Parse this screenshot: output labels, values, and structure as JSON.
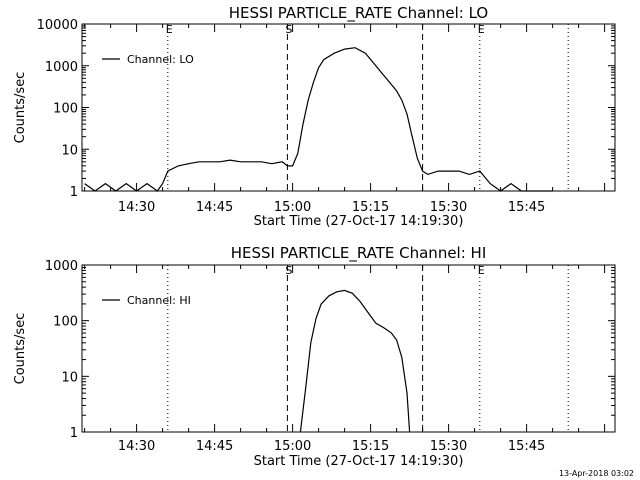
{
  "footer_timestamp": "13-Apr-2018 03:02",
  "chart_data": [
    {
      "type": "line",
      "title": "HESSI PARTICLE_RATE Channel: LO",
      "xlabel": "Start Time (27-Oct-17 14:19:30)",
      "ylabel": "Counts/sec",
      "yscale": "log",
      "xlim": [
        "14:19:30",
        "16:02:00"
      ],
      "ylim": [
        1,
        10000
      ],
      "xticks": [
        "14:30",
        "14:45",
        "15:00",
        "15:15",
        "15:30",
        "15:45"
      ],
      "yticks": [
        "1",
        "10",
        "100",
        "1000",
        "10000"
      ],
      "legend": {
        "position": "top-left",
        "entries": [
          "Channel: LO"
        ]
      },
      "markers": [
        {
          "time": "14:36:00",
          "style": "dotted",
          "label": "E"
        },
        {
          "time": "14:59:00",
          "style": "dashed",
          "label": "S"
        },
        {
          "time": "15:25:00",
          "style": "dashed",
          "label": ""
        },
        {
          "time": "15:36:00",
          "style": "dotted",
          "label": "E"
        },
        {
          "time": "15:53:00",
          "style": "dotted",
          "label": ""
        }
      ],
      "series": [
        {
          "name": "Channel: LO",
          "x": [
            "14:20:00",
            "14:22:00",
            "14:24:00",
            "14:26:00",
            "14:28:00",
            "14:30:00",
            "14:32:00",
            "14:34:00",
            "14:35:00",
            "14:36:00",
            "14:38:00",
            "14:40:00",
            "14:42:00",
            "14:44:00",
            "14:46:00",
            "14:48:00",
            "14:50:00",
            "14:52:00",
            "14:54:00",
            "14:56:00",
            "14:58:00",
            "14:59:00",
            "15:00:00",
            "15:01:00",
            "15:02:00",
            "15:03:00",
            "15:04:00",
            "15:05:00",
            "15:06:00",
            "15:08:00",
            "15:10:00",
            "15:12:00",
            "15:14:00",
            "15:16:00",
            "15:18:00",
            "15:20:00",
            "15:21:00",
            "15:22:00",
            "15:23:00",
            "15:24:00",
            "15:25:00",
            "15:26:00",
            "15:28:00",
            "15:30:00",
            "15:32:00",
            "15:34:00",
            "15:36:00",
            "15:38:00",
            "15:40:00",
            "15:42:00",
            "15:44:00",
            "15:46:00",
            "15:48:00",
            "15:50:00"
          ],
          "y": [
            1.5,
            1,
            1.5,
            1,
            1.5,
            1,
            1.5,
            1,
            1.5,
            3,
            4,
            4.5,
            5,
            5,
            5,
            5.5,
            5,
            5,
            5,
            4.5,
            5,
            4,
            4,
            8,
            40,
            150,
            400,
            900,
            1400,
            2000,
            2500,
            2700,
            2000,
            1000,
            500,
            250,
            150,
            70,
            20,
            6,
            3,
            2.5,
            3,
            3,
            3,
            2.5,
            3,
            1.5,
            1,
            1.5,
            1,
            1,
            1,
            1
          ]
        }
      ]
    },
    {
      "type": "line",
      "title": "HESSI PARTICLE_RATE Channel: HI",
      "xlabel": "Start Time (27-Oct-17 14:19:30)",
      "ylabel": "Counts/sec",
      "yscale": "log",
      "xlim": [
        "14:19:30",
        "16:02:00"
      ],
      "ylim": [
        1,
        1000
      ],
      "xticks": [
        "14:30",
        "14:45",
        "15:00",
        "15:15",
        "15:30",
        "15:45"
      ],
      "yticks": [
        "1",
        "10",
        "100",
        "1000"
      ],
      "legend": {
        "position": "top-left",
        "entries": [
          "Channel: HI"
        ]
      },
      "markers": [
        {
          "time": "14:36:00",
          "style": "dotted",
          "label": ""
        },
        {
          "time": "14:59:00",
          "style": "dashed",
          "label": "S"
        },
        {
          "time": "15:25:00",
          "style": "dashed",
          "label": ""
        },
        {
          "time": "15:36:00",
          "style": "dotted",
          "label": "E"
        },
        {
          "time": "15:53:00",
          "style": "dotted",
          "label": ""
        }
      ],
      "series": [
        {
          "name": "Channel: HI",
          "x": [
            "15:01:30",
            "15:02:30",
            "15:03:30",
            "15:04:30",
            "15:05:30",
            "15:07:00",
            "15:08:30",
            "15:10:00",
            "15:11:30",
            "15:13:00",
            "15:14:30",
            "15:16:00",
            "15:17:30",
            "15:19:00",
            "15:20:00",
            "15:21:00",
            "15:22:00",
            "15:22:30"
          ],
          "y": [
            1,
            6,
            40,
            110,
            200,
            280,
            330,
            350,
            310,
            220,
            140,
            90,
            75,
            60,
            45,
            22,
            5,
            1
          ]
        }
      ]
    }
  ]
}
